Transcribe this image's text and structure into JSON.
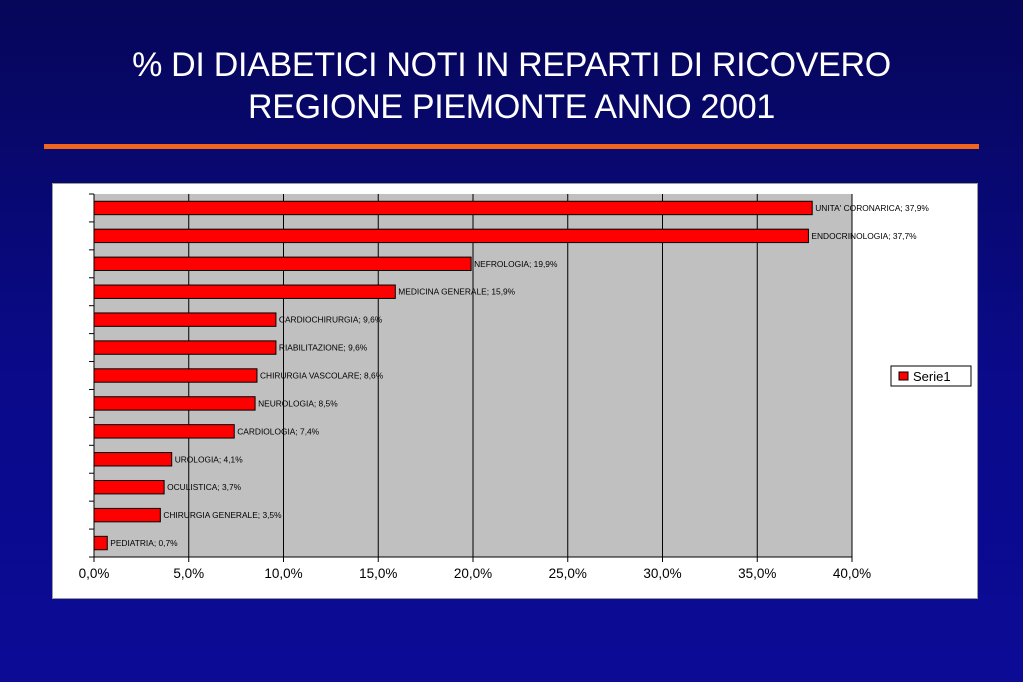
{
  "slide": {
    "title_line1": "% DI DIABETICI NOTI IN REPARTI DI RICOVERO",
    "title_line2": "REGIONE PIEMONTE ANNO 2001",
    "accent_color": "#f0661e",
    "background_color": "#0a0a8a"
  },
  "chart_data": {
    "type": "bar",
    "orientation": "horizontal",
    "categories": [
      "UNITA' CORONARICA",
      "ENDOCRINOLOGIA",
      "NEFROLOGIA",
      "MEDICINA GENERALE",
      "CARDIOCHIRURGIA",
      "RIABILITAZIONE",
      "CHIRURGIA VASCOLARE",
      "NEUROLOGIA",
      "CARDIOLOGIA",
      "UROLOGIA",
      "OCULISTICA",
      "CHIRURGIA GENERALE",
      "PEDIATRIA"
    ],
    "series": [
      {
        "name": "Serie1",
        "color": "#ff0000",
        "values": [
          37.9,
          37.7,
          19.9,
          15.9,
          9.6,
          9.6,
          8.6,
          8.5,
          7.4,
          4.1,
          3.7,
          3.5,
          0.7
        ]
      }
    ],
    "data_labels": [
      "UNITA' CORONARICA; 37,9%",
      "ENDOCRINOLOGIA; 37,7%",
      "NEFROLOGIA; 19,9%",
      "MEDICINA GENERALE; 15,9%",
      "CARDIOCHIRURGIA; 9,6%",
      "RIABILITAZIONE; 9,6%",
      "CHIRURGIA VASCOLARE; 8,6%",
      "NEUROLOGIA; 8,5%",
      "CARDIOLOGIA; 7,4%",
      "UROLOGIA; 4,1%",
      "OCULISTICA; 3,7%",
      "CHIRURGIA GENERALE; 3,5%",
      "PEDIATRIA; 0,7%"
    ],
    "xlim": [
      0,
      40
    ],
    "xticks": [
      "0,0%",
      "5,0%",
      "10,0%",
      "15,0%",
      "20,0%",
      "25,0%",
      "30,0%",
      "35,0%",
      "40,0%"
    ],
    "grid": true,
    "plot_background": "#c0c0c0",
    "legend": {
      "entries": [
        "Serie1"
      ],
      "placement": "right"
    }
  }
}
